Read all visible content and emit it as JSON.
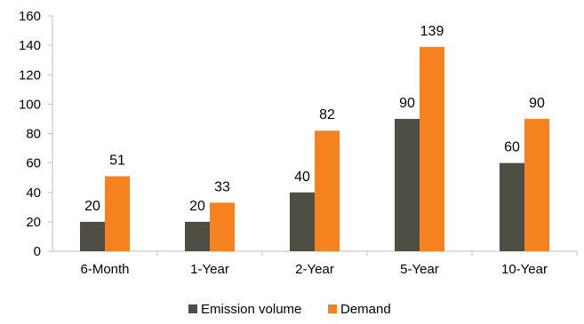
{
  "chart_data": {
    "type": "bar",
    "categories": [
      "6-Month",
      "1-Year",
      "2-Year",
      "5-Year",
      "10-Year"
    ],
    "series": [
      {
        "name": "Emission volume",
        "values": [
          20,
          20,
          40,
          90,
          60
        ],
        "color": "#4d4d44"
      },
      {
        "name": "Demand",
        "values": [
          51,
          33,
          82,
          139,
          90
        ],
        "color": "#f5821f"
      }
    ],
    "ylim": [
      0,
      160
    ],
    "yticks": [
      0,
      20,
      40,
      60,
      80,
      100,
      120,
      140,
      160
    ],
    "data_labels": true,
    "grid": false,
    "legend_position": "bottom"
  }
}
